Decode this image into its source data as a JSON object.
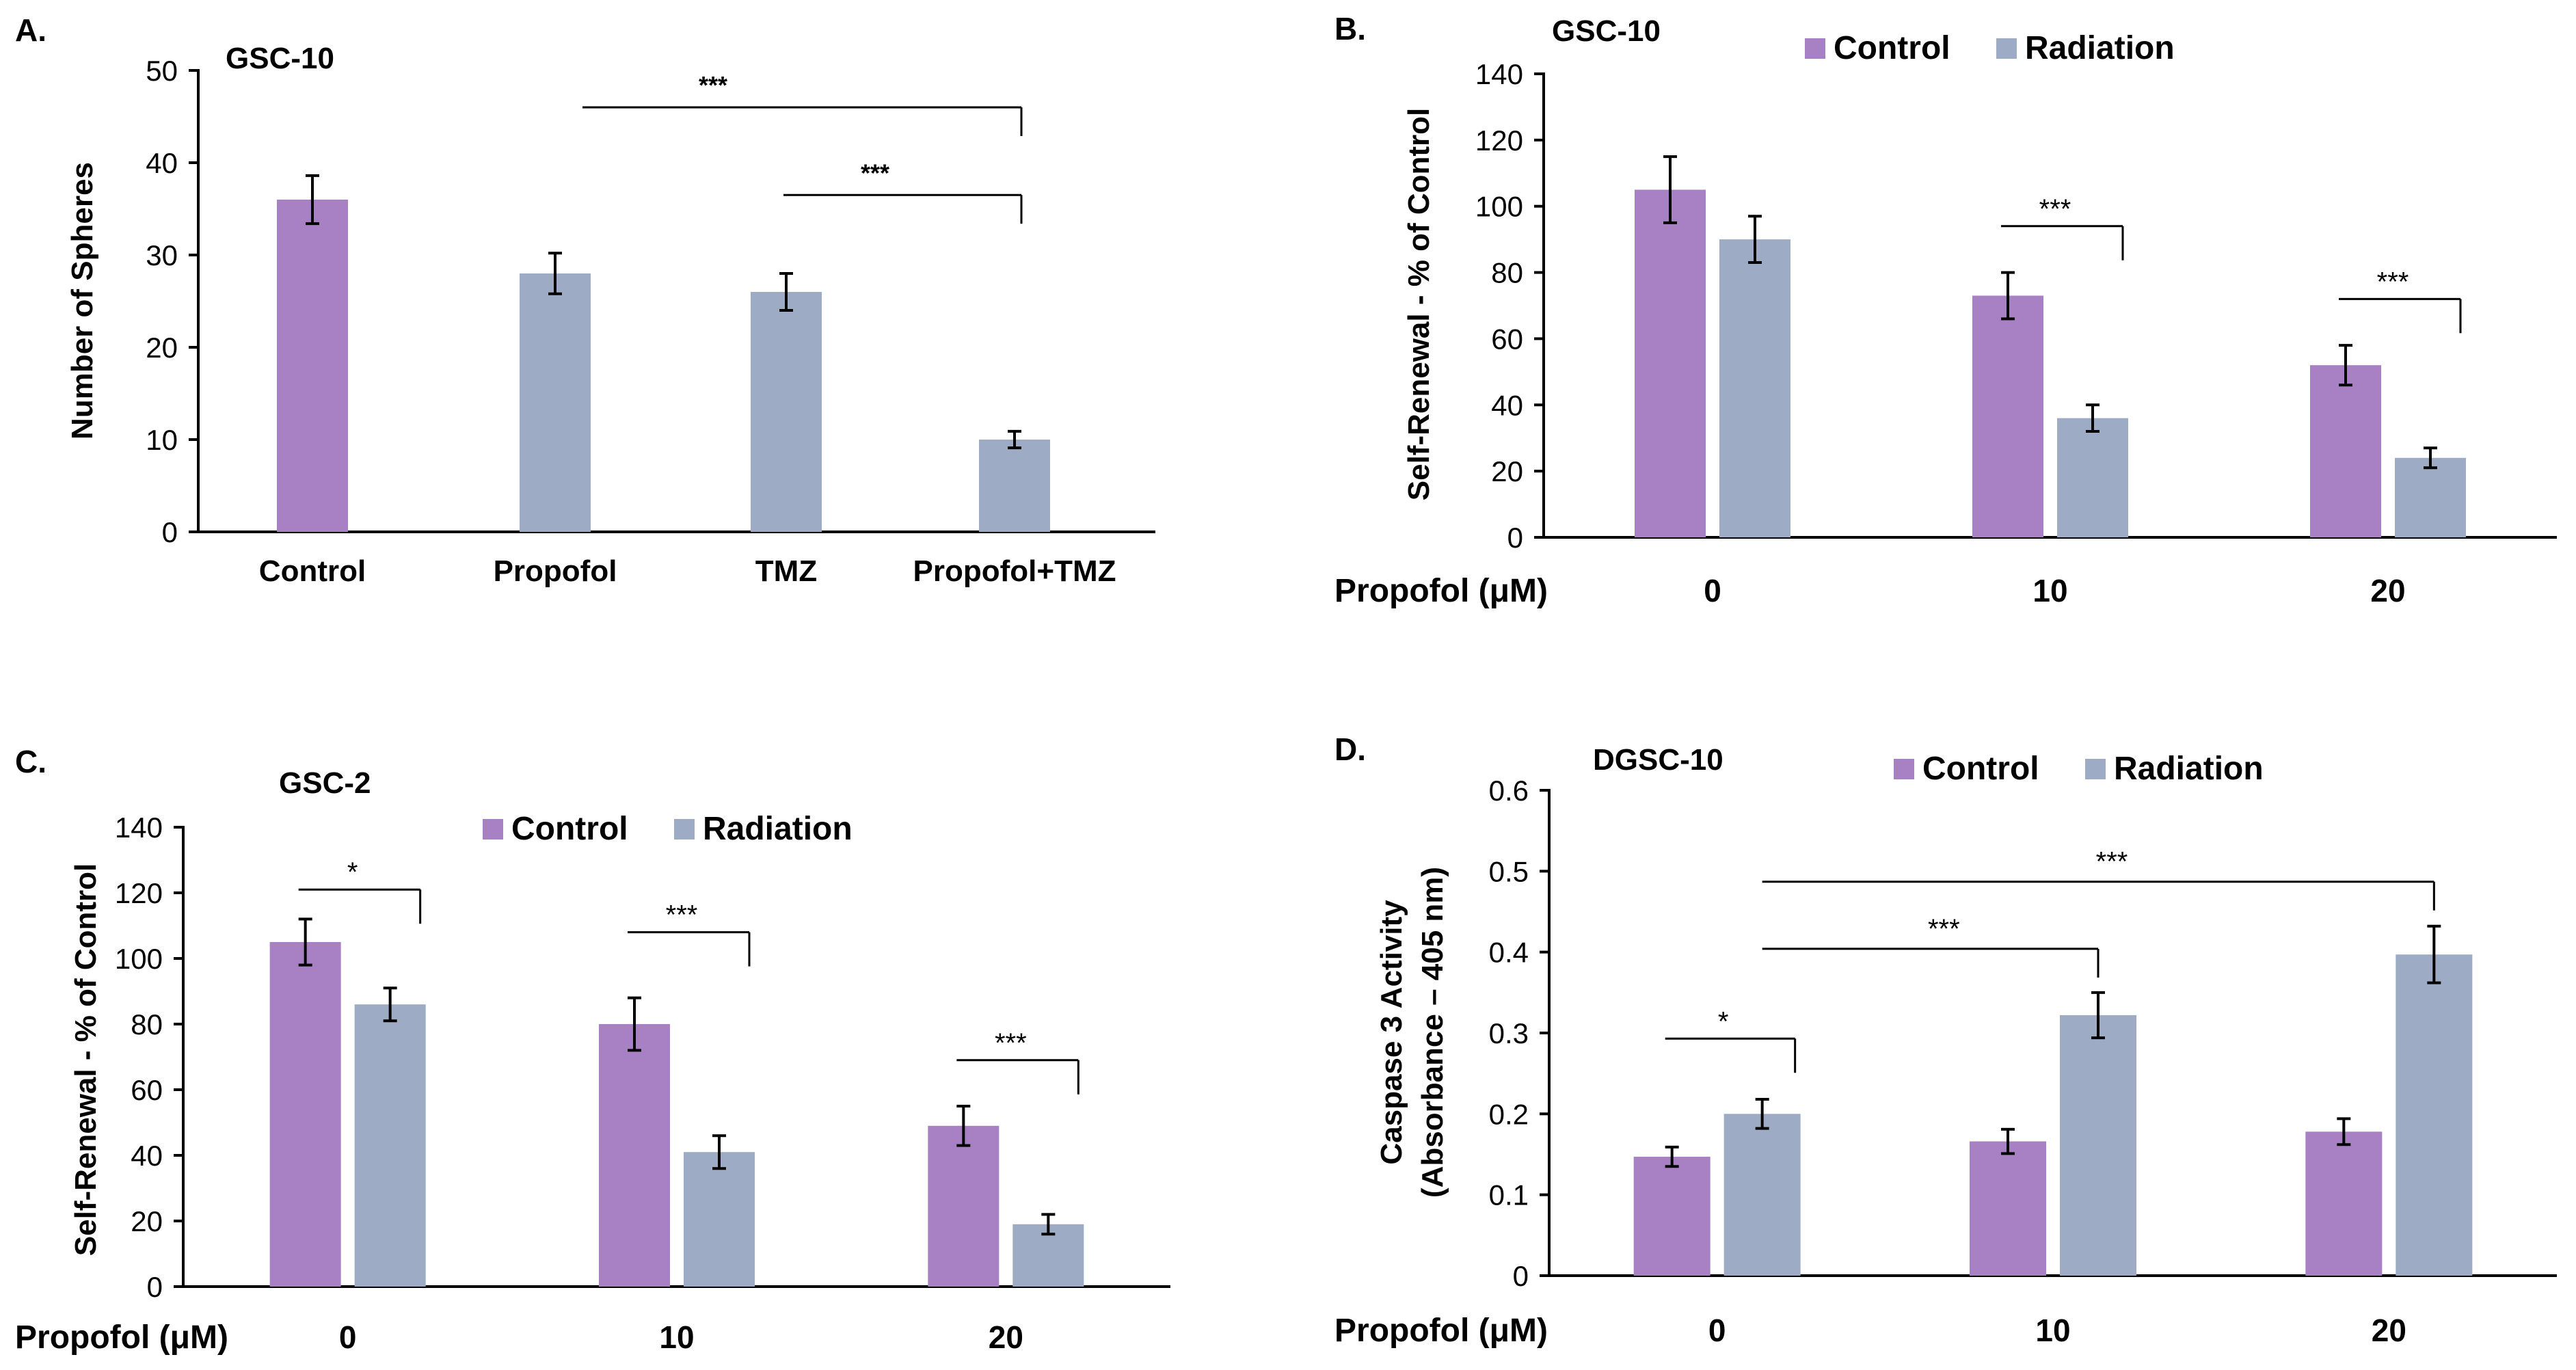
{
  "colors": {
    "control": "#A880C4",
    "radiation": "#9DABC4",
    "axis": "#000000",
    "error": "#333333"
  },
  "chart_data": [
    {
      "panel": "A.",
      "type": "bar",
      "title": "GSC-10",
      "categories": [
        "Control",
        "Propofol",
        "TMZ",
        "Propofol+TMZ"
      ],
      "values": [
        36,
        28,
        26,
        10
      ],
      "errors": [
        2.6,
        2.2,
        2.0,
        0.9
      ],
      "bar_colors": [
        "control",
        "radiation",
        "radiation",
        "radiation"
      ],
      "ylabel": "Number of Spheres",
      "xlabel": "",
      "ylim": [
        0,
        50
      ],
      "yticks": [
        0,
        10,
        20,
        30,
        40,
        50
      ],
      "significance": [
        {
          "label": "***",
          "from": 1,
          "to": 3,
          "y": 46
        },
        {
          "label": "***",
          "from": 2,
          "to": 3,
          "y": 36.5
        }
      ]
    },
    {
      "panel": "B.",
      "type": "bar",
      "title": "GSC-10",
      "xlabel": "Propofol (μM)",
      "categories": [
        "0",
        "10",
        "20"
      ],
      "series": [
        {
          "name": "Control",
          "values": [
            105,
            73,
            52
          ],
          "errors": [
            10,
            7,
            6
          ]
        },
        {
          "name": "Radiation",
          "values": [
            90,
            36,
            24
          ],
          "errors": [
            7,
            4,
            3
          ]
        }
      ],
      "ylabel": "Self-Renewal - % of Control",
      "ylim": [
        0,
        140
      ],
      "yticks": [
        0,
        20,
        40,
        60,
        80,
        100,
        120,
        140
      ],
      "legend": "top",
      "significance": [
        {
          "label": "***",
          "group": 1,
          "y": 94
        },
        {
          "label": "***",
          "group": 2,
          "y": 72
        }
      ]
    },
    {
      "panel": "C.",
      "type": "bar",
      "title": "GSC-2",
      "xlabel": "Propofol (μM)",
      "categories": [
        "0",
        "10",
        "20"
      ],
      "series": [
        {
          "name": "Control",
          "values": [
            105,
            80,
            49
          ],
          "errors": [
            7,
            8,
            6
          ]
        },
        {
          "name": "Radiation",
          "values": [
            86,
            41,
            19
          ],
          "errors": [
            5,
            5,
            3
          ]
        }
      ],
      "ylabel": "Self-Renewal - % of Control",
      "ylim": [
        0,
        140
      ],
      "yticks": [
        0,
        20,
        40,
        60,
        80,
        100,
        120,
        140
      ],
      "legend": "top",
      "significance": [
        {
          "label": "*",
          "group": 0,
          "y": 121
        },
        {
          "label": "***",
          "group": 1,
          "y": 108
        },
        {
          "label": "***",
          "group": 2,
          "y": 69
        }
      ]
    },
    {
      "panel": "D.",
      "type": "bar",
      "title": "DGSC-10",
      "xlabel": "Propofol (μM)",
      "categories": [
        "0",
        "10",
        "20"
      ],
      "series": [
        {
          "name": "Control",
          "values": [
            0.147,
            0.166,
            0.178
          ],
          "errors": [
            0.012,
            0.015,
            0.016
          ]
        },
        {
          "name": "Radiation",
          "values": [
            0.2,
            0.322,
            0.397
          ],
          "errors": [
            0.018,
            0.028,
            0.035
          ]
        }
      ],
      "ylabel": "Caspase 3 Activity",
      "ylabel2": "(Absorbance – 405 nm)",
      "ylim": [
        0,
        0.6
      ],
      "yticks": [
        "0",
        "0.1",
        "0.2",
        "0.3",
        "0.4",
        "0.5",
        "0.6"
      ],
      "legend": "top",
      "significance": [
        {
          "label": "*",
          "group": 0,
          "y": 0.293
        },
        {
          "label": "***",
          "fromSeriesBar": [
            0,
            1
          ],
          "toSeriesBar": [
            1,
            1
          ],
          "y": 0.404
        },
        {
          "label": "***",
          "fromSeriesBar": [
            0,
            1
          ],
          "toSeriesBar": [
            2,
            1
          ],
          "y": 0.487
        }
      ]
    }
  ]
}
